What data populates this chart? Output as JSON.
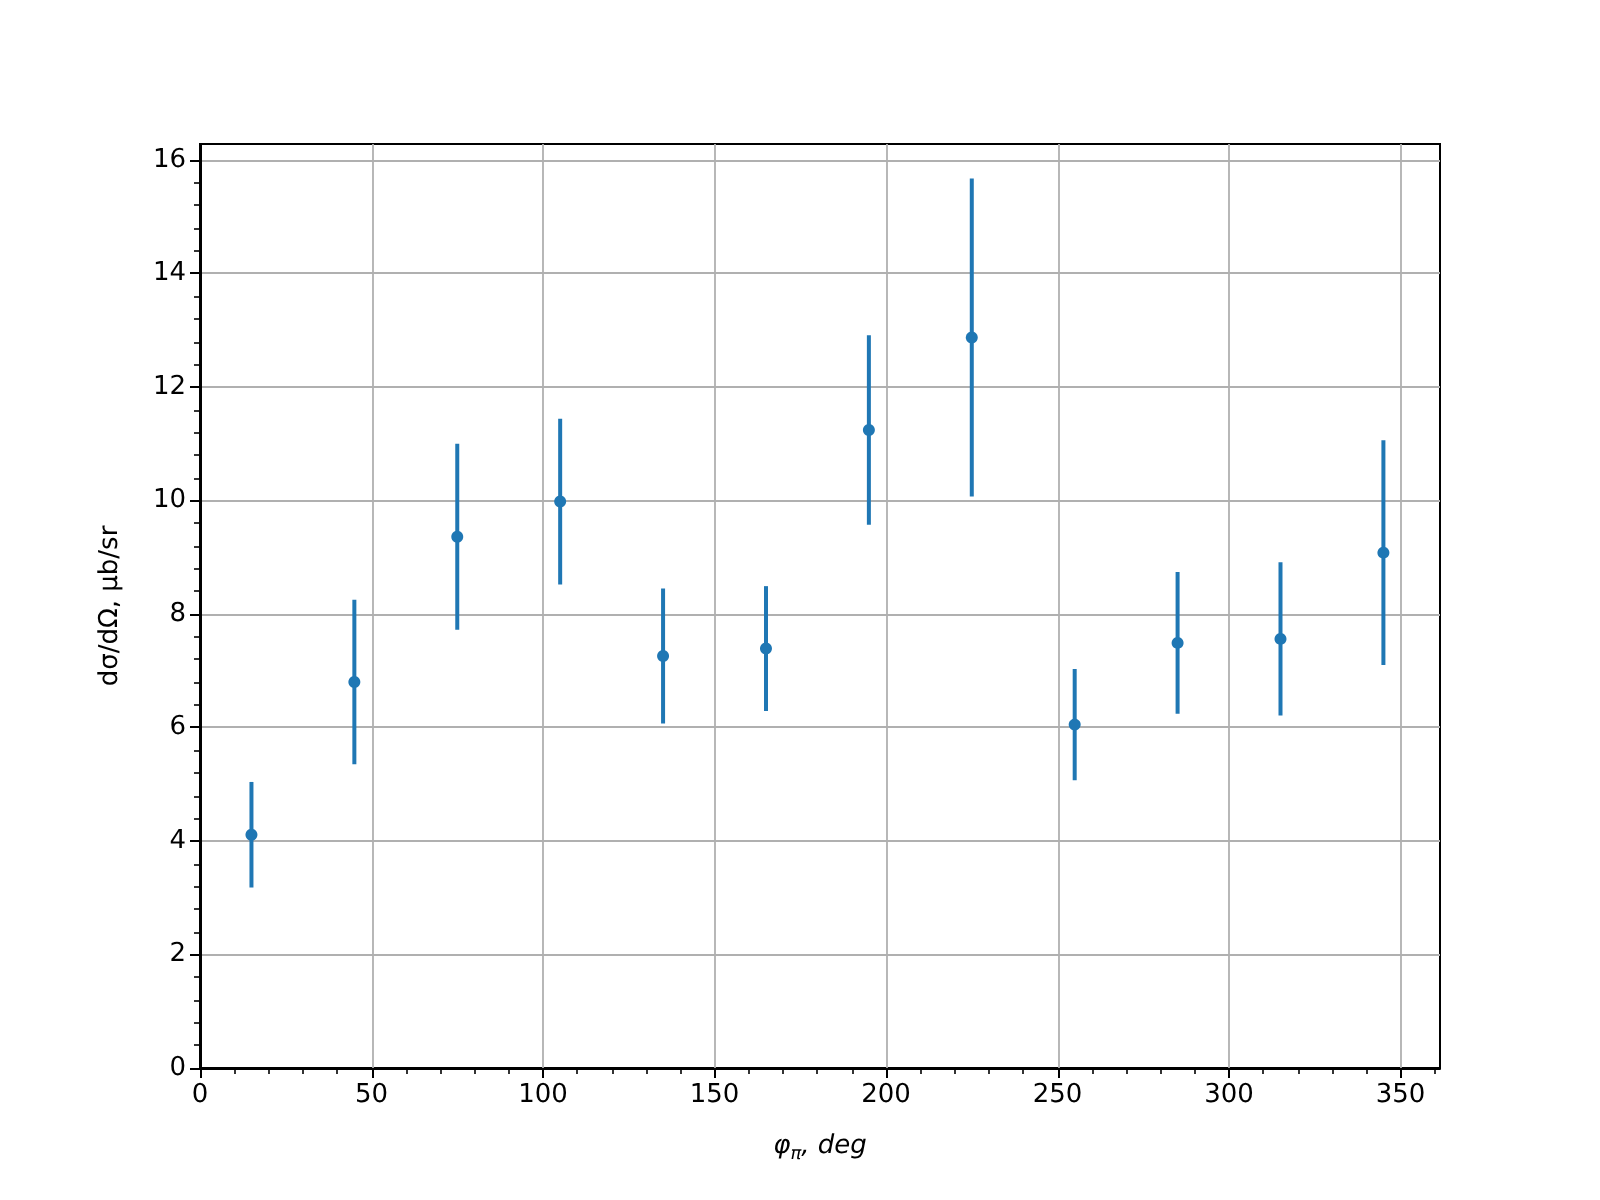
{
  "chart_data": {
    "type": "scatter",
    "xlabel": "φ$_{π}$, deg",
    "ylabel": "dσ/dΩ, μb/sr",
    "x": [
      15,
      45,
      75,
      105,
      135,
      165,
      195,
      225,
      255,
      285,
      315,
      345
    ],
    "values": [
      4.11,
      6.8,
      9.36,
      9.98,
      7.26,
      7.39,
      11.24,
      12.87,
      6.05,
      7.49,
      7.56,
      9.08
    ],
    "errors": [
      0.93,
      1.45,
      1.64,
      1.46,
      1.19,
      1.1,
      1.67,
      2.8,
      0.98,
      1.25,
      1.35,
      1.98
    ],
    "color": "#1f77b4",
    "marker": "circle",
    "grid": true,
    "xlim": [
      0,
      361.5
    ],
    "ylim": [
      0,
      16.28
    ],
    "xticks": [
      0,
      {
        "value": 10,
        "label": null
      },
      {
        "value": 20,
        "label": null
      },
      {
        "value": 30,
        "label": null
      },
      {
        "value": 40,
        "label": null
      },
      50,
      {
        "value": 60,
        "label": null
      },
      {
        "value": 70,
        "label": null
      },
      {
        "value": 80,
        "label": null
      },
      {
        "value": 90,
        "label": null
      },
      100,
      {
        "value": 110,
        "label": null
      },
      {
        "value": 120,
        "label": null
      },
      {
        "value": 130,
        "label": null
      },
      {
        "value": 140,
        "label": null
      },
      150,
      {
        "value": 160,
        "label": null
      },
      {
        "value": 170,
        "label": null
      },
      {
        "value": 180,
        "label": null
      },
      {
        "value": 190,
        "label": null
      },
      200,
      {
        "value": 210,
        "label": null
      },
      {
        "value": 220,
        "label": null
      },
      {
        "value": 230,
        "label": null
      },
      {
        "value": 240,
        "label": null
      },
      250,
      {
        "value": 260,
        "label": null
      },
      {
        "value": 270,
        "label": null
      },
      {
        "value": 280,
        "label": null
      },
      {
        "value": 290,
        "label": null
      },
      300,
      {
        "value": 310,
        "label": null
      },
      {
        "value": 320,
        "label": null
      },
      {
        "value": 330,
        "label": null
      },
      {
        "value": 340,
        "label": null
      },
      350,
      {
        "value": 360,
        "label": null
      }
    ],
    "yticks": [
      0,
      {
        "value": 0.4,
        "label": null
      },
      {
        "value": 0.8,
        "label": null
      },
      {
        "value": 1.2,
        "label": null
      },
      {
        "value": 1.6,
        "label": null
      },
      2,
      {
        "value": 2.4,
        "label": null
      },
      {
        "value": 2.8,
        "label": null
      },
      {
        "value": 3.2,
        "label": null
      },
      {
        "value": 3.6,
        "label": null
      },
      4,
      {
        "value": 4.4,
        "label": null
      },
      {
        "value": 4.8,
        "label": null
      },
      {
        "value": 5.2,
        "label": null
      },
      {
        "value": 5.6,
        "label": null
      },
      6,
      {
        "value": 6.4,
        "label": null
      },
      {
        "value": 6.8,
        "label": null
      },
      {
        "value": 7.2,
        "label": null
      },
      {
        "value": 7.6,
        "label": null
      },
      8,
      {
        "value": 8.4,
        "label": null
      },
      {
        "value": 8.8,
        "label": null
      },
      {
        "value": 9.2,
        "label": null
      },
      {
        "value": 9.6,
        "label": null
      },
      10,
      {
        "value": 10.4,
        "label": null
      },
      {
        "value": 10.8,
        "label": null
      },
      {
        "value": 11.2,
        "label": null
      },
      {
        "value": 11.6,
        "label": null
      },
      12,
      {
        "value": 12.4,
        "label": null
      },
      {
        "value": 12.8,
        "label": null
      },
      {
        "value": 13.2,
        "label": null
      },
      {
        "value": 13.6,
        "label": null
      },
      14,
      {
        "value": 14.4,
        "label": null
      },
      {
        "value": 14.8,
        "label": null
      },
      {
        "value": 15.2,
        "label": null
      },
      {
        "value": 15.6,
        "label": null
      },
      16
    ]
  }
}
